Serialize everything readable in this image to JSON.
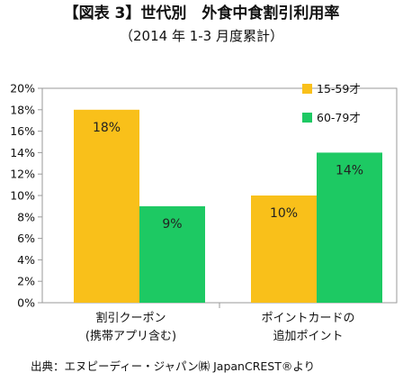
{
  "chart_data": {
    "type": "bar",
    "title": "【図表 3】世代別　外食中食割引利用率",
    "subtitle": "（2014 年 1-3 月度累計）",
    "categories": [
      [
        "割引クーポン",
        "(携帯アプリ含む)"
      ],
      [
        "ポイントカードの",
        "追加ポイント"
      ]
    ],
    "series": [
      {
        "name": "15-59才",
        "color": "#F9C01A",
        "values": [
          18,
          10
        ]
      },
      {
        "name": "60-79才",
        "color": "#1DC963",
        "values": [
          9,
          14
        ]
      }
    ],
    "data_labels": [
      [
        "18%",
        "10%"
      ],
      [
        "9%",
        "14%"
      ]
    ],
    "ylim": [
      0,
      20
    ],
    "y_ticks": [
      "0%",
      "2%",
      "4%",
      "6%",
      "8%",
      "10%",
      "12%",
      "14%",
      "16%",
      "18%",
      "20%"
    ],
    "grid": false,
    "legend_position": "top-right",
    "source": "出典：エヌピーディー・ジャパン㈱ JapanCREST®より"
  }
}
